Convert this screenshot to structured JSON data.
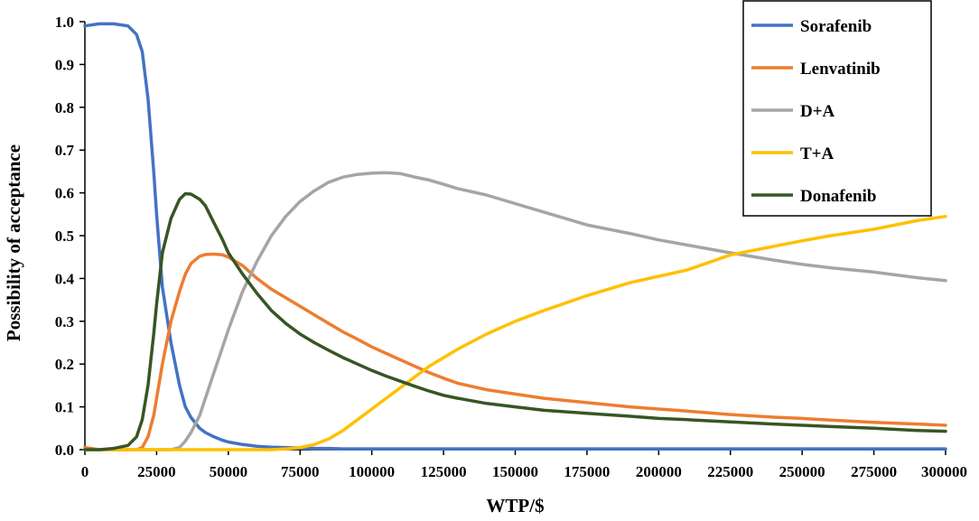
{
  "chart_data": {
    "type": "line",
    "title": "",
    "xlabel": "WTP/$",
    "ylabel": "Possibility of acceptance",
    "xlim": [
      0,
      300000
    ],
    "ylim": [
      0,
      1.0
    ],
    "x_ticks": [
      "0",
      "25000",
      "50000",
      "75000",
      "100000",
      "125000",
      "150000",
      "175000",
      "200000",
      "225000",
      "250000",
      "275000",
      "300000"
    ],
    "y_ticks": [
      "0.0",
      "0.1",
      "0.2",
      "0.3",
      "0.4",
      "0.5",
      "0.6",
      "0.7",
      "0.8",
      "0.9",
      "1.0"
    ],
    "grid": false,
    "legend_position": "top-right",
    "x": [
      0,
      5000,
      10000,
      15000,
      18000,
      20000,
      22000,
      24000,
      25000,
      27000,
      30000,
      33000,
      35000,
      37000,
      40000,
      42000,
      45000,
      48000,
      50000,
      55000,
      60000,
      65000,
      70000,
      75000,
      80000,
      85000,
      90000,
      95000,
      100000,
      105000,
      110000,
      115000,
      120000,
      125000,
      130000,
      140000,
      150000,
      160000,
      175000,
      190000,
      200000,
      210000,
      225000,
      240000,
      250000,
      260000,
      275000,
      290000,
      300000
    ],
    "series": [
      {
        "name": "Sorafenib",
        "color": "#4472C4",
        "values": [
          0.99,
          0.995,
          0.995,
          0.99,
          0.97,
          0.93,
          0.82,
          0.65,
          0.55,
          0.38,
          0.25,
          0.15,
          0.1,
          0.075,
          0.05,
          0.04,
          0.03,
          0.022,
          0.018,
          0.012,
          0.008,
          0.006,
          0.005,
          0.004,
          0.003,
          0.003,
          0.002,
          0.002,
          0.002,
          0.002,
          0.002,
          0.002,
          0.002,
          0.002,
          0.002,
          0.002,
          0.002,
          0.002,
          0.002,
          0.002,
          0.002,
          0.002,
          0.002,
          0.002,
          0.002,
          0.002,
          0.002,
          0.002,
          0.002
        ]
      },
      {
        "name": "Lenvatinib",
        "color": "#ED7D31",
        "values": [
          0.005,
          0.0,
          0.0,
          0.0,
          0.0,
          0.005,
          0.03,
          0.08,
          0.12,
          0.2,
          0.3,
          0.37,
          0.41,
          0.435,
          0.452,
          0.456,
          0.457,
          0.455,
          0.45,
          0.43,
          0.4,
          0.375,
          0.355,
          0.335,
          0.315,
          0.295,
          0.275,
          0.258,
          0.24,
          0.225,
          0.21,
          0.195,
          0.18,
          0.167,
          0.155,
          0.14,
          0.13,
          0.12,
          0.11,
          0.1,
          0.095,
          0.09,
          0.082,
          0.076,
          0.073,
          0.069,
          0.064,
          0.06,
          0.057
        ]
      },
      {
        "name": "D+A",
        "color": "#A5A5A5",
        "values": [
          0.0,
          0.0,
          0.0,
          0.0,
          0.0,
          0.0,
          0.0,
          0.0,
          0.0,
          0.0,
          0.0,
          0.005,
          0.02,
          0.04,
          0.08,
          0.12,
          0.18,
          0.24,
          0.28,
          0.37,
          0.44,
          0.5,
          0.545,
          0.58,
          0.605,
          0.625,
          0.637,
          0.643,
          0.646,
          0.647,
          0.645,
          0.637,
          0.63,
          0.62,
          0.61,
          0.595,
          0.575,
          0.555,
          0.525,
          0.505,
          0.49,
          0.478,
          0.46,
          0.443,
          0.433,
          0.425,
          0.415,
          0.402,
          0.395
        ]
      },
      {
        "name": "T+A",
        "color": "#FFC000",
        "values": [
          0.0,
          0.0,
          0.0,
          0.0,
          0.0,
          0.0,
          0.0,
          0.0,
          0.0,
          0.0,
          0.0,
          0.0,
          0.0,
          0.0,
          0.0,
          0.0,
          0.0,
          0.0,
          0.0,
          0.0,
          0.0,
          0.0,
          0.002,
          0.005,
          0.012,
          0.025,
          0.045,
          0.07,
          0.095,
          0.12,
          0.145,
          0.17,
          0.195,
          0.215,
          0.235,
          0.27,
          0.3,
          0.325,
          0.36,
          0.39,
          0.405,
          0.42,
          0.455,
          0.475,
          0.488,
          0.5,
          0.515,
          0.535,
          0.545
        ]
      },
      {
        "name": "Donafenib",
        "color": "#375623",
        "values": [
          0.0,
          0.0,
          0.003,
          0.01,
          0.03,
          0.07,
          0.15,
          0.27,
          0.34,
          0.46,
          0.54,
          0.585,
          0.598,
          0.597,
          0.585,
          0.57,
          0.53,
          0.49,
          0.46,
          0.41,
          0.365,
          0.325,
          0.295,
          0.27,
          0.25,
          0.232,
          0.215,
          0.2,
          0.185,
          0.172,
          0.16,
          0.148,
          0.137,
          0.127,
          0.12,
          0.108,
          0.1,
          0.092,
          0.085,
          0.078,
          0.073,
          0.07,
          0.065,
          0.06,
          0.057,
          0.054,
          0.05,
          0.045,
          0.043
        ]
      }
    ]
  }
}
